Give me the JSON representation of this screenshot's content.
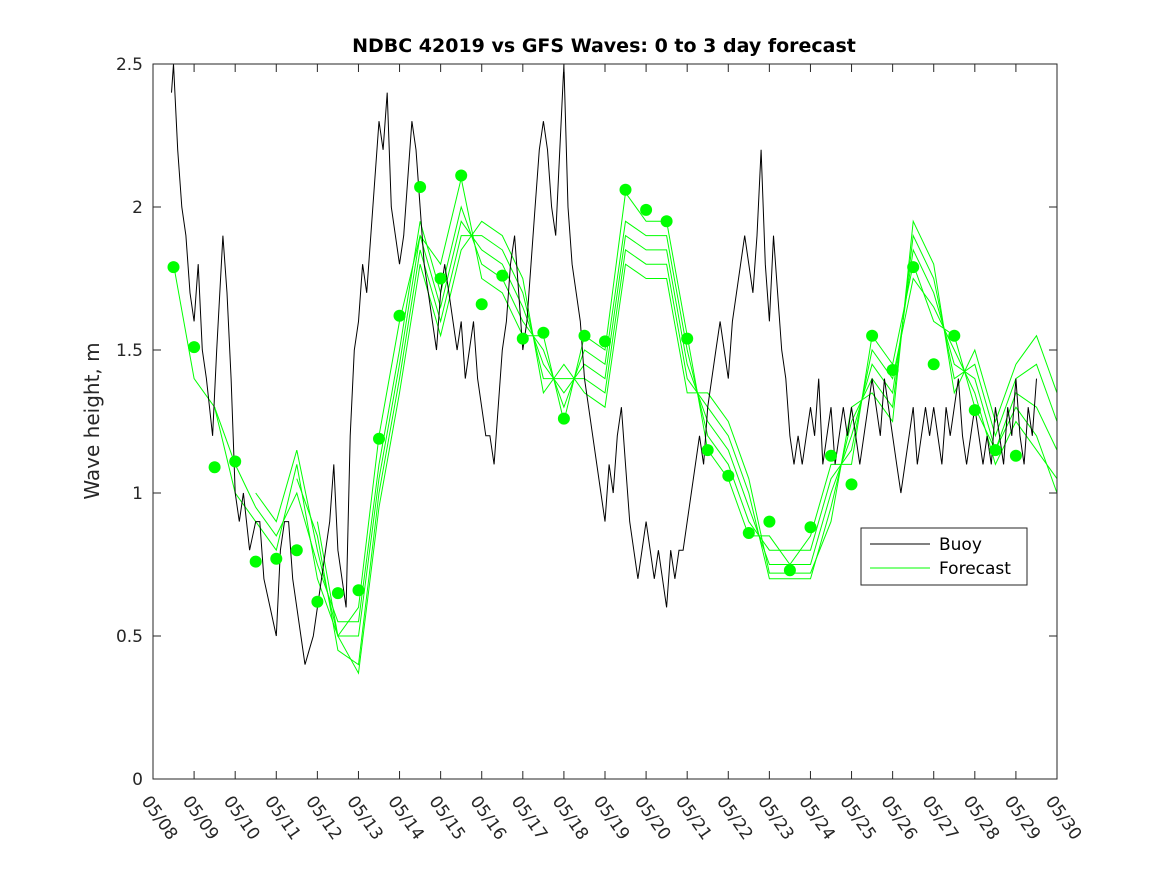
{
  "chart_data": {
    "type": "line",
    "title": "NDBC 42019 vs GFS Waves: 0 to 3 day forecast",
    "xlabel": "",
    "ylabel": "Wave height, m",
    "x_axis": {
      "range": [
        "05/08",
        "05/30"
      ],
      "tick_labels": [
        "05/08",
        "05/09",
        "05/10",
        "05/11",
        "05/12",
        "05/13",
        "05/14",
        "05/15",
        "05/16",
        "05/17",
        "05/18",
        "05/19",
        "05/20",
        "05/21",
        "05/22",
        "05/23",
        "05/24",
        "05/25",
        "05/26",
        "05/27",
        "05/28",
        "05/29",
        "05/30"
      ]
    },
    "y_axis": {
      "range": [
        0,
        2.5
      ],
      "tick_labels": [
        "0",
        "0.5",
        "1",
        "1.5",
        "2",
        "2.5"
      ],
      "tick_values": [
        0,
        0.5,
        1,
        1.5,
        2,
        2.5
      ]
    },
    "grid": false,
    "legend": {
      "placement": "right-middle",
      "entries": [
        {
          "label": "Buoy",
          "color": "#000000"
        },
        {
          "label": "Forecast",
          "color": "#00ff00"
        }
      ]
    },
    "buoy": {
      "name": "Buoy",
      "color": "#000000",
      "day": [
        0.45,
        0.5,
        0.6,
        0.7,
        0.8,
        0.9,
        1.0,
        1.1,
        1.2,
        1.3,
        1.45,
        1.55,
        1.7,
        1.8,
        1.9,
        2.0,
        2.1,
        2.2,
        2.35,
        2.5,
        2.6,
        2.7,
        2.85,
        3.0,
        3.1,
        3.2,
        3.3,
        3.4,
        3.5,
        3.6,
        3.7,
        3.8,
        3.9,
        4.0,
        4.1,
        4.2,
        4.3,
        4.4,
        4.5,
        4.6,
        4.7,
        4.8,
        4.9,
        5.0,
        5.1,
        5.2,
        5.3,
        5.4,
        5.5,
        5.6,
        5.7,
        5.8,
        5.9,
        6.0,
        6.1,
        6.2,
        6.3,
        6.4,
        6.5,
        6.6,
        6.7,
        6.8,
        6.9,
        7.0,
        7.1,
        7.2,
        7.3,
        7.4,
        7.5,
        7.6,
        7.7,
        7.8,
        7.9,
        8.0,
        8.1,
        8.2,
        8.3,
        8.4,
        8.5,
        8.6,
        8.7,
        8.8,
        8.9,
        9.0,
        9.1,
        9.2,
        9.3,
        9.4,
        9.5,
        9.6,
        9.7,
        9.8,
        9.9,
        10.0,
        10.1,
        10.2,
        10.3,
        10.4,
        10.5,
        10.6,
        10.7,
        10.8,
        10.9,
        11.0,
        11.1,
        11.2,
        11.3,
        11.4,
        11.5,
        11.6,
        11.7,
        11.8,
        11.9,
        12.0,
        12.1,
        12.2,
        12.3,
        12.4,
        12.5,
        12.6,
        12.7,
        12.8,
        12.9,
        13.0,
        13.1,
        13.2,
        13.3,
        13.4,
        13.5,
        13.6,
        13.7,
        13.8,
        13.9,
        14.0,
        14.1,
        14.2,
        14.3,
        14.4,
        14.5,
        14.6,
        14.7,
        14.8,
        14.9,
        15.0,
        15.1,
        15.2,
        15.3,
        15.4,
        15.5,
        15.6,
        15.7,
        15.8,
        15.9,
        16.0,
        16.1,
        16.2,
        16.3,
        16.4,
        16.5,
        16.6,
        16.7,
        16.8,
        16.9,
        17.0,
        17.1,
        17.2,
        17.3,
        17.4,
        17.5,
        17.6,
        17.7,
        17.8,
        17.9,
        18.0,
        18.1,
        18.2,
        18.3,
        18.4,
        18.5,
        18.6,
        18.7,
        18.8,
        18.9,
        19.0,
        19.1,
        19.2,
        19.3,
        19.4,
        19.5,
        19.6,
        19.7,
        19.8,
        19.9,
        20.0,
        20.1,
        20.2,
        20.3,
        20.4,
        20.5,
        20.6,
        20.7,
        20.8,
        20.9,
        21.0,
        21.1,
        21.2,
        21.3,
        21.4,
        21.5,
        21.6,
        21.7,
        21.8,
        21.9,
        22.0
      ],
      "height": [
        2.4,
        2.5,
        2.2,
        2.0,
        1.9,
        1.7,
        1.6,
        1.8,
        1.5,
        1.4,
        1.2,
        1.5,
        1.9,
        1.7,
        1.4,
        1.0,
        0.9,
        1.0,
        0.8,
        0.9,
        0.9,
        0.7,
        0.6,
        0.5,
        0.8,
        0.9,
        0.9,
        0.7,
        0.6,
        0.5,
        0.4,
        0.45,
        0.5,
        0.6,
        0.7,
        0.8,
        0.9,
        1.1,
        0.8,
        0.7,
        0.6,
        1.2,
        1.5,
        1.6,
        1.8,
        1.7,
        1.9,
        2.1,
        2.3,
        2.2,
        2.4,
        2.0,
        1.9,
        1.8,
        1.9,
        2.1,
        2.3,
        2.2,
        2.0,
        1.8,
        1.7,
        1.6,
        1.5,
        1.7,
        1.8,
        1.7,
        1.6,
        1.5,
        1.6,
        1.4,
        1.5,
        1.6,
        1.4,
        1.3,
        1.2,
        1.2,
        1.1,
        1.3,
        1.5,
        1.6,
        1.8,
        1.9,
        1.7,
        1.5,
        1.6,
        1.8,
        2.0,
        2.2,
        2.3,
        2.2,
        2.0,
        1.9,
        2.2,
        2.5,
        2.0,
        1.8,
        1.7,
        1.6,
        1.4,
        1.3,
        1.2,
        1.1,
        1.0,
        0.9,
        1.1,
        1.0,
        1.2,
        1.3,
        1.1,
        0.9,
        0.8,
        0.7,
        0.8,
        0.9,
        0.8,
        0.7,
        0.8,
        0.7,
        0.6,
        0.8,
        0.7,
        0.8,
        0.8,
        0.9,
        1.0,
        1.1,
        1.2,
        1.1,
        1.3,
        1.4,
        1.5,
        1.6,
        1.5,
        1.4,
        1.6,
        1.7,
        1.8,
        1.9,
        1.8,
        1.7,
        1.9,
        2.2,
        1.8,
        1.6,
        1.9,
        1.7,
        1.5,
        1.4,
        1.2,
        1.1,
        1.2,
        1.1,
        1.2,
        1.3,
        1.2,
        1.4,
        1.1,
        1.2,
        1.3,
        1.1,
        1.2,
        1.3,
        1.2,
        1.3,
        1.2,
        1.1,
        1.2,
        1.3,
        1.4,
        1.3,
        1.2,
        1.4,
        1.3,
        1.2,
        1.1,
        1.0,
        1.1,
        1.2,
        1.3,
        1.1,
        1.2,
        1.3,
        1.2,
        1.3,
        1.2,
        1.1,
        1.3,
        1.2,
        1.3,
        1.4,
        1.2,
        1.1,
        1.2,
        1.3,
        1.2,
        1.1,
        1.2,
        1.1,
        1.3,
        1.2,
        1.1,
        1.3,
        1.2,
        1.4,
        1.2,
        1.1,
        1.3,
        1.2,
        1.4
      ]
    },
    "forecast_series": [
      {
        "color": "#00ff00",
        "day": [
          0.5,
          1.0,
          1.5,
          2.0,
          2.5,
          3.0,
          3.5,
          4.0,
          4.5,
          5.0,
          5.5,
          6.0,
          6.5,
          7.0,
          7.5,
          8.0,
          8.5,
          9.0,
          9.5,
          10.0,
          10.5,
          11.0,
          11.5,
          12.0,
          12.5,
          13.0,
          13.5,
          14.0,
          14.5,
          15.0,
          15.5,
          16.0,
          16.5,
          17.0,
          17.5,
          18.0,
          18.5,
          19.0,
          19.5,
          20.0,
          20.5,
          21.0,
          21.5,
          22.0
        ],
        "height": [
          1.8,
          1.4,
          1.3,
          1.0,
          0.9,
          0.8,
          1.1,
          0.7,
          0.5,
          0.6,
          1.2,
          1.6,
          1.9,
          1.8,
          2.1,
          1.75,
          1.7,
          1.55,
          1.55,
          1.25,
          1.55,
          1.5,
          2.05,
          1.95,
          1.95,
          1.55,
          1.15,
          1.05,
          0.85,
          0.85,
          0.75,
          0.85,
          1.1,
          1.1,
          1.55,
          1.45,
          1.8,
          1.6,
          1.55,
          1.3,
          1.15,
          1.3,
          1.2,
          1.0
        ]
      },
      {
        "color": "#00ff00",
        "day": [
          1.5,
          2.0,
          2.5,
          3.0,
          3.5,
          4.0,
          4.5,
          5.0,
          5.5,
          6.0,
          6.5,
          7.0,
          7.5,
          8.0,
          8.5,
          9.0,
          9.5,
          10.0,
          10.5,
          11.0,
          11.5,
          12.0,
          12.5,
          13.0,
          13.5,
          14.0,
          14.5,
          15.0,
          15.5,
          16.0,
          16.5,
          17.0,
          17.5,
          18.0,
          18.5,
          19.0,
          19.5,
          20.0,
          20.5,
          21.0,
          21.5,
          22.0
        ],
        "height": [
          1.3,
          1.1,
          0.95,
          0.85,
          1.0,
          0.75,
          0.55,
          0.55,
          1.1,
          1.5,
          1.95,
          1.7,
          2.0,
          1.8,
          1.75,
          1.6,
          1.5,
          1.3,
          1.5,
          1.45,
          1.95,
          1.9,
          1.9,
          1.5,
          1.2,
          1.1,
          0.9,
          0.8,
          0.8,
          0.8,
          1.05,
          1.15,
          1.5,
          1.4,
          1.75,
          1.65,
          1.5,
          1.35,
          1.1,
          1.25,
          1.15,
          1.05
        ]
      },
      {
        "color": "#00ff00",
        "day": [
          2.5,
          3.0,
          3.5,
          4.0,
          4.5,
          5.0,
          5.5,
          6.0,
          6.5,
          7.0,
          7.5,
          8.0,
          8.5,
          9.0,
          9.5,
          10.0,
          10.5,
          11.0,
          11.5,
          12.0,
          12.5,
          13.0,
          13.5,
          14.0,
          14.5,
          15.0,
          15.5,
          16.0,
          16.5,
          17.0,
          17.5,
          18.0,
          18.5,
          19.0,
          19.5,
          20.0,
          20.5,
          21.0,
          21.5,
          22.0
        ],
        "height": [
          1.0,
          0.9,
          1.15,
          0.8,
          0.5,
          0.5,
          1.05,
          1.45,
          1.9,
          1.65,
          1.95,
          1.85,
          1.8,
          1.65,
          1.45,
          1.35,
          1.45,
          1.4,
          1.9,
          1.85,
          1.85,
          1.45,
          1.25,
          1.15,
          0.95,
          0.75,
          0.75,
          0.75,
          1.0,
          1.2,
          1.45,
          1.35,
          1.85,
          1.7,
          1.45,
          1.4,
          1.15,
          1.35,
          1.3,
          1.15
        ]
      },
      {
        "color": "#00ff00",
        "day": [
          3.5,
          4.0,
          4.5,
          5.0,
          5.5,
          6.0,
          6.5,
          7.0,
          7.5,
          8.0,
          8.5,
          9.0,
          9.5,
          10.0,
          10.5,
          11.0,
          11.5,
          12.0,
          12.5,
          13.0,
          13.5,
          14.0,
          14.5,
          15.0,
          15.5,
          16.0,
          16.5,
          17.0,
          17.5,
          18.0,
          18.5,
          19.0,
          19.5,
          20.0,
          20.5,
          21.0,
          21.5,
          22.0
        ],
        "height": [
          1.05,
          0.85,
          0.45,
          0.4,
          1.0,
          1.4,
          1.85,
          1.6,
          1.9,
          1.9,
          1.85,
          1.7,
          1.4,
          1.4,
          1.4,
          1.35,
          1.85,
          1.8,
          1.8,
          1.4,
          1.3,
          1.2,
          1.0,
          0.7,
          0.7,
          0.7,
          0.95,
          1.25,
          1.4,
          1.3,
          1.9,
          1.75,
          1.4,
          1.45,
          1.2,
          1.4,
          1.45,
          1.25
        ]
      },
      {
        "color": "#00ff00",
        "day": [
          4.0,
          4.5,
          5.0,
          5.5,
          6.0,
          6.5,
          7.0,
          7.5,
          8.0,
          8.5,
          9.0,
          9.5,
          10.0,
          10.5,
          11.0,
          11.5,
          12.0,
          12.5,
          13.0,
          13.5,
          14.0,
          14.5,
          15.0,
          15.5,
          16.0,
          16.5,
          17.0,
          17.5,
          18.0,
          18.5,
          19.0,
          19.5,
          20.0,
          20.5,
          21.0,
          21.5,
          22.0
        ],
        "height": [
          0.9,
          0.5,
          0.37,
          0.95,
          1.35,
          1.8,
          1.55,
          1.85,
          1.95,
          1.9,
          1.75,
          1.35,
          1.45,
          1.35,
          1.3,
          1.8,
          1.75,
          1.75,
          1.35,
          1.35,
          1.25,
          1.05,
          0.72,
          0.72,
          0.72,
          0.9,
          1.3,
          1.35,
          1.25,
          1.95,
          1.8,
          1.35,
          1.5,
          1.25,
          1.45,
          1.55,
          1.35
        ]
      }
    ],
    "forecast_points": {
      "name": "Forecast",
      "color": "#00ff00",
      "day": [
        0.5,
        1.0,
        1.5,
        2.0,
        2.5,
        3.0,
        3.5,
        4.0,
        4.5,
        5.0,
        5.5,
        6.0,
        6.5,
        7.0,
        7.5,
        8.0,
        8.5,
        9.0,
        9.5,
        10.0,
        10.5,
        11.0,
        11.5,
        12.0,
        12.5,
        13.0,
        13.5,
        14.0,
        14.5,
        15.0,
        15.5,
        16.0,
        16.5,
        17.0,
        17.5,
        18.0,
        18.5,
        19.0,
        19.5,
        20.0,
        20.5,
        21.0
      ],
      "height": [
        1.79,
        1.51,
        1.09,
        1.11,
        0.76,
        0.77,
        0.8,
        0.62,
        0.65,
        0.66,
        1.19,
        1.62,
        2.07,
        1.75,
        2.11,
        1.66,
        1.76,
        1.54,
        1.56,
        1.26,
        1.55,
        1.53,
        2.06,
        1.99,
        1.95,
        1.54,
        1.15,
        1.06,
        0.86,
        0.9,
        0.73,
        0.88,
        1.13,
        1.03,
        1.55,
        1.43,
        1.79,
        1.45,
        1.55,
        1.29,
        1.15,
        1.13
      ]
    }
  }
}
